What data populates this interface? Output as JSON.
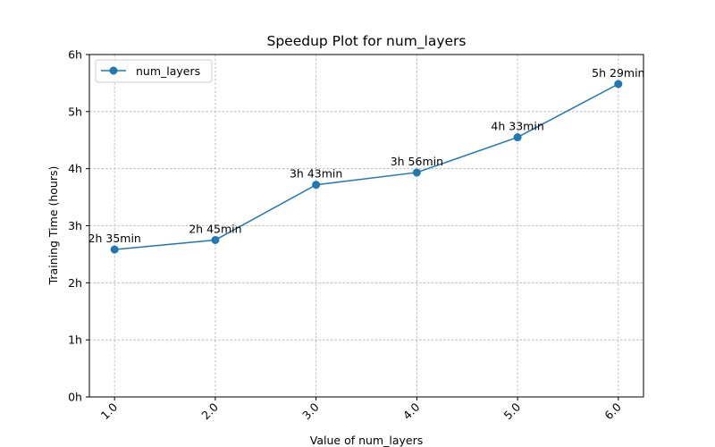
{
  "chart_data": {
    "type": "line",
    "title": "Speedup Plot for num_layers",
    "xlabel": "Value of num_layers",
    "ylabel": "Training Time (hours)",
    "xlim": [
      0.75,
      6.25
    ],
    "ylim": [
      0,
      6
    ],
    "x_ticks": [
      1.0,
      2.0,
      3.0,
      4.0,
      5.0,
      6.0
    ],
    "x_tick_labels": [
      "1.0",
      "2.0",
      "3.0",
      "4.0",
      "5.0",
      "6.0"
    ],
    "y_ticks": [
      0,
      1,
      2,
      3,
      4,
      5,
      6
    ],
    "y_tick_labels": [
      "0h",
      "1h",
      "2h",
      "3h",
      "4h",
      "5h",
      "6h"
    ],
    "grid": true,
    "legend_position": "top-left",
    "series": [
      {
        "name": "num_layers",
        "color": "#1f77b4",
        "marker": "circle",
        "x": [
          1.0,
          2.0,
          3.0,
          4.0,
          5.0,
          6.0
        ],
        "y": [
          2.583,
          2.75,
          3.717,
          3.933,
          4.55,
          5.483
        ],
        "labels": [
          "2h 35min",
          "2h 45min",
          "3h 43min",
          "3h 56min",
          "4h 33min",
          "5h 29min"
        ]
      }
    ]
  }
}
